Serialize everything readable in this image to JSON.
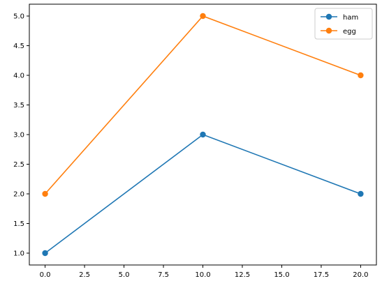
{
  "chart_data": {
    "type": "line",
    "title": "",
    "xlabel": "",
    "ylabel": "",
    "x": [
      0,
      10,
      20
    ],
    "xlim": [
      -1,
      21
    ],
    "ylim": [
      0.8,
      5.2
    ],
    "xticks": [
      0.0,
      2.5,
      5.0,
      7.5,
      10.0,
      12.5,
      15.0,
      17.5,
      20.0
    ],
    "xtick_labels": [
      "0.0",
      "2.5",
      "5.0",
      "7.5",
      "10.0",
      "12.5",
      "15.0",
      "17.5",
      "20.0"
    ],
    "yticks": [
      1.0,
      1.5,
      2.0,
      2.5,
      3.0,
      3.5,
      4.0,
      4.5,
      5.0
    ],
    "ytick_labels": [
      "1.0",
      "1.5",
      "2.0",
      "2.5",
      "3.0",
      "3.5",
      "4.0",
      "4.5",
      "5.0"
    ],
    "grid": false,
    "legend_position": "top-right",
    "series": [
      {
        "name": "ham",
        "values": [
          1,
          3,
          2
        ],
        "color": "#1f77b4",
        "marker": "circle"
      },
      {
        "name": "egg",
        "values": [
          2,
          5,
          4
        ],
        "color": "#ff7f0e",
        "marker": "circle"
      }
    ]
  }
}
